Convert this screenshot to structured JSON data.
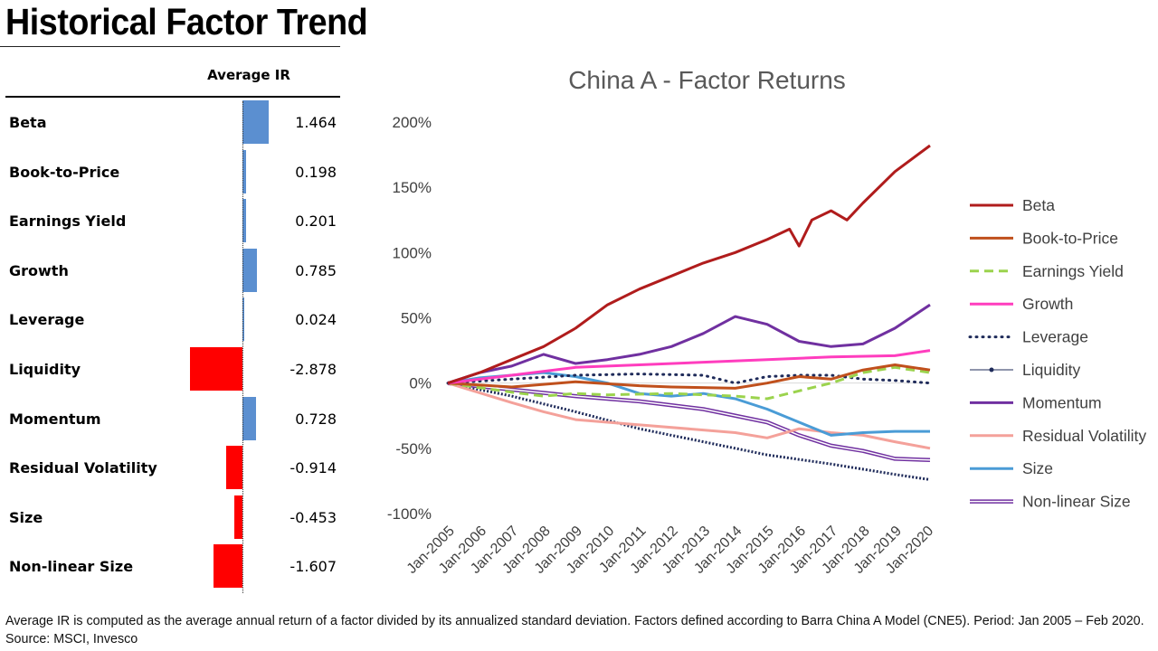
{
  "page": {
    "title": "Historical Factor Trend",
    "footnote": "Average IR is computed as the average annual return of a factor divided by its annualized standard deviation. Factors defined according to Barra China A Model (CNE5). Period: Jan 2005 – Feb 2020. Source: MSCI, Invesco"
  },
  "chart_data": [
    {
      "type": "bar",
      "orientation": "horizontal",
      "title": "Average IR",
      "categories": [
        "Beta",
        "Book-to-Price",
        "Earnings Yield",
        "Growth",
        "Leverage",
        "Liquidity",
        "Momentum",
        "Residual Volatility",
        "Size",
        "Non-linear Size"
      ],
      "values": [
        1.464,
        0.198,
        0.201,
        0.785,
        0.024,
        -2.878,
        0.728,
        -0.914,
        -0.453,
        -1.607
      ],
      "value_labels": [
        "1.464",
        "0.198",
        "0.201",
        "0.785",
        "0.024",
        "-2.878",
        "0.728",
        "-0.914",
        "-0.453",
        "-1.607"
      ],
      "colors": {
        "positive": "#5b8fd0",
        "negative": "#ff0000"
      }
    },
    {
      "type": "line",
      "title": "China A - Factor Returns",
      "xlabel": "",
      "ylabel": "",
      "x_ticks": [
        "Jan-2005",
        "Jan-2006",
        "Jan-2007",
        "Jan-2008",
        "Jan-2009",
        "Jan-2010",
        "Jan-2011",
        "Jan-2012",
        "Jan-2013",
        "Jan-2014",
        "Jan-2015",
        "Jan-2016",
        "Jan-2017",
        "Jan-2018",
        "Jan-2019",
        "Jan-2020"
      ],
      "y_ticks": [
        "200%",
        "150%",
        "100%",
        "50%",
        "0%",
        "-50%",
        "-100%"
      ],
      "ylim": [
        -100,
        200
      ],
      "xlim": [
        2005,
        2020.1
      ],
      "grid": false,
      "legend_position": "right",
      "series": [
        {
          "name": "Beta",
          "color": "#b01c1c",
          "style": "solid",
          "points": [
            [
              2005,
              0
            ],
            [
              2006,
              8
            ],
            [
              2007,
              18
            ],
            [
              2008,
              28
            ],
            [
              2009,
              42
            ],
            [
              2010,
              60
            ],
            [
              2011,
              72
            ],
            [
              2012,
              82
            ],
            [
              2013,
              92
            ],
            [
              2014,
              100
            ],
            [
              2015,
              110
            ],
            [
              2015.7,
              118
            ],
            [
              2016,
              105
            ],
            [
              2016.4,
              125
            ],
            [
              2017,
              132
            ],
            [
              2017.5,
              125
            ],
            [
              2018,
              138
            ],
            [
              2019,
              162
            ],
            [
              2020.1,
              182
            ]
          ]
        },
        {
          "name": "Book-to-Price",
          "color": "#c0501c",
          "style": "solid",
          "points": [
            [
              2005,
              0
            ],
            [
              2007,
              -3
            ],
            [
              2009,
              1
            ],
            [
              2011,
              -2
            ],
            [
              2012,
              -3
            ],
            [
              2014,
              -4
            ],
            [
              2015,
              0
            ],
            [
              2016,
              5
            ],
            [
              2017,
              3
            ],
            [
              2018,
              10
            ],
            [
              2019,
              14
            ],
            [
              2020.1,
              10
            ]
          ]
        },
        {
          "name": "Earnings Yield",
          "color": "#9bd34d",
          "style": "dashed",
          "points": [
            [
              2005,
              0
            ],
            [
              2007,
              -7
            ],
            [
              2008,
              -10
            ],
            [
              2009,
              -8
            ],
            [
              2010,
              -9
            ],
            [
              2012,
              -8
            ],
            [
              2014,
              -10
            ],
            [
              2015,
              -12
            ],
            [
              2016,
              -6
            ],
            [
              2017,
              0
            ],
            [
              2018,
              8
            ],
            [
              2019,
              12
            ],
            [
              2020.1,
              8
            ]
          ]
        },
        {
          "name": "Growth",
          "color": "#ff3dbe",
          "style": "solid",
          "points": [
            [
              2005,
              0
            ],
            [
              2007,
              6
            ],
            [
              2009,
              12
            ],
            [
              2011,
              14
            ],
            [
              2013,
              16
            ],
            [
              2015,
              18
            ],
            [
              2017,
              20
            ],
            [
              2019,
              21
            ],
            [
              2020.1,
              25
            ]
          ]
        },
        {
          "name": "Leverage",
          "color": "#1f2b5a",
          "style": "dotted",
          "points": [
            [
              2005,
              0
            ],
            [
              2007,
              3
            ],
            [
              2009,
              6
            ],
            [
              2011,
              7
            ],
            [
              2013,
              6
            ],
            [
              2014,
              0
            ],
            [
              2015,
              5
            ],
            [
              2016,
              6
            ],
            [
              2017,
              6
            ],
            [
              2018,
              3
            ],
            [
              2019,
              2
            ],
            [
              2020.1,
              0
            ]
          ]
        },
        {
          "name": "Liquidity",
          "color": "#1f2b5a",
          "style": "marker",
          "points": [
            [
              2005,
              0
            ],
            [
              2007,
              -10
            ],
            [
              2009,
              -22
            ],
            [
              2011,
              -35
            ],
            [
              2013,
              -45
            ],
            [
              2015,
              -55
            ],
            [
              2017,
              -62
            ],
            [
              2019,
              -70
            ],
            [
              2020.1,
              -74
            ]
          ]
        },
        {
          "name": "Momentum",
          "color": "#7030a0",
          "style": "solid",
          "points": [
            [
              2005,
              0
            ],
            [
              2006,
              8
            ],
            [
              2007,
              13
            ],
            [
              2008,
              22
            ],
            [
              2009,
              15
            ],
            [
              2010,
              18
            ],
            [
              2011,
              22
            ],
            [
              2012,
              28
            ],
            [
              2013,
              38
            ],
            [
              2014,
              51
            ],
            [
              2015,
              45
            ],
            [
              2016,
              32
            ],
            [
              2017,
              28
            ],
            [
              2018,
              30
            ],
            [
              2019,
              42
            ],
            [
              2020.1,
              60
            ]
          ]
        },
        {
          "name": "Residual Volatility",
          "color": "#f4a19a",
          "style": "solid",
          "points": [
            [
              2005,
              0
            ],
            [
              2007,
              -15
            ],
            [
              2008,
              -22
            ],
            [
              2009,
              -28
            ],
            [
              2011,
              -32
            ],
            [
              2013,
              -36
            ],
            [
              2014,
              -38
            ],
            [
              2015,
              -42
            ],
            [
              2016,
              -35
            ],
            [
              2017,
              -38
            ],
            [
              2018,
              -40
            ],
            [
              2019,
              -45
            ],
            [
              2020.1,
              -50
            ]
          ]
        },
        {
          "name": "Size",
          "color": "#4a9cd6",
          "style": "solid",
          "points": [
            [
              2005,
              0
            ],
            [
              2006,
              4
            ],
            [
              2007,
              6
            ],
            [
              2008,
              8
            ],
            [
              2009,
              5
            ],
            [
              2010,
              0
            ],
            [
              2011,
              -8
            ],
            [
              2012,
              -10
            ],
            [
              2013,
              -8
            ],
            [
              2014,
              -12
            ],
            [
              2015,
              -20
            ],
            [
              2016,
              -30
            ],
            [
              2017,
              -40
            ],
            [
              2018,
              -38
            ],
            [
              2019,
              -37
            ],
            [
              2020.1,
              -37
            ]
          ]
        },
        {
          "name": "Non-linear Size",
          "color": "#7030a0",
          "style": "double",
          "points": [
            [
              2005,
              0
            ],
            [
              2007,
              -5
            ],
            [
              2009,
              -10
            ],
            [
              2011,
              -14
            ],
            [
              2013,
              -20
            ],
            [
              2015,
              -30
            ],
            [
              2016,
              -40
            ],
            [
              2017,
              -48
            ],
            [
              2018,
              -52
            ],
            [
              2019,
              -58
            ],
            [
              2020.1,
              -59
            ]
          ]
        }
      ]
    }
  ]
}
